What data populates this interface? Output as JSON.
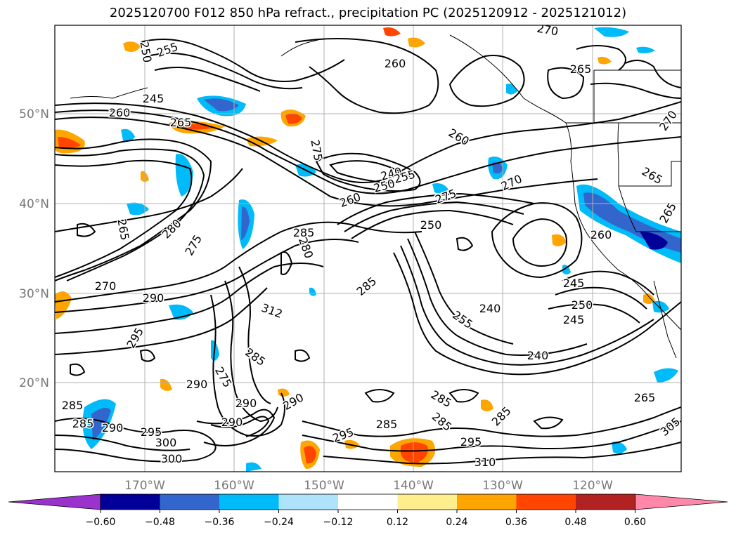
{
  "title": "2025120700 F012 850 hPa refract., precipitation PC (2025120912 - 2025121012)",
  "lat_labels": [
    "50°N",
    "40°N",
    "30°N",
    "20°N"
  ],
  "lon_labels": [
    "170°W",
    "160°W",
    "150°W",
    "140°W",
    "130°W",
    "120°W"
  ],
  "colorbar": {
    "colors": [
      "#9933cc",
      "#000099",
      "#3366cc",
      "#00bbf9",
      "#aee3fb",
      "#ffffff",
      "#ffee8d",
      "#ffa500",
      "#ff4500",
      "#b22222",
      "#ff88aa"
    ],
    "tick_labels": [
      "−0.60",
      "−0.48",
      "−0.36",
      "−0.24",
      "−0.12",
      "0.12",
      "0.24",
      "0.36",
      "0.48",
      "0.60"
    ]
  },
  "contour_labels": [
    "255",
    "250",
    "260",
    "245",
    "260",
    "265",
    "270",
    "265",
    "275",
    "260",
    "240",
    "250",
    "255",
    "260",
    "275",
    "270",
    "265",
    "280",
    "285",
    "280",
    "250",
    "265",
    "275",
    "285",
    "260",
    "265",
    "270",
    "290",
    "245",
    "250",
    "245",
    "240",
    "255",
    "285",
    "295",
    "290",
    "285",
    "240",
    "312",
    "270",
    "275",
    "290",
    "285",
    "285",
    "295",
    "295",
    "285",
    "300",
    "285",
    "310",
    "285",
    "290",
    "295",
    "300",
    "290",
    "305",
    "265",
    "290"
  ]
}
